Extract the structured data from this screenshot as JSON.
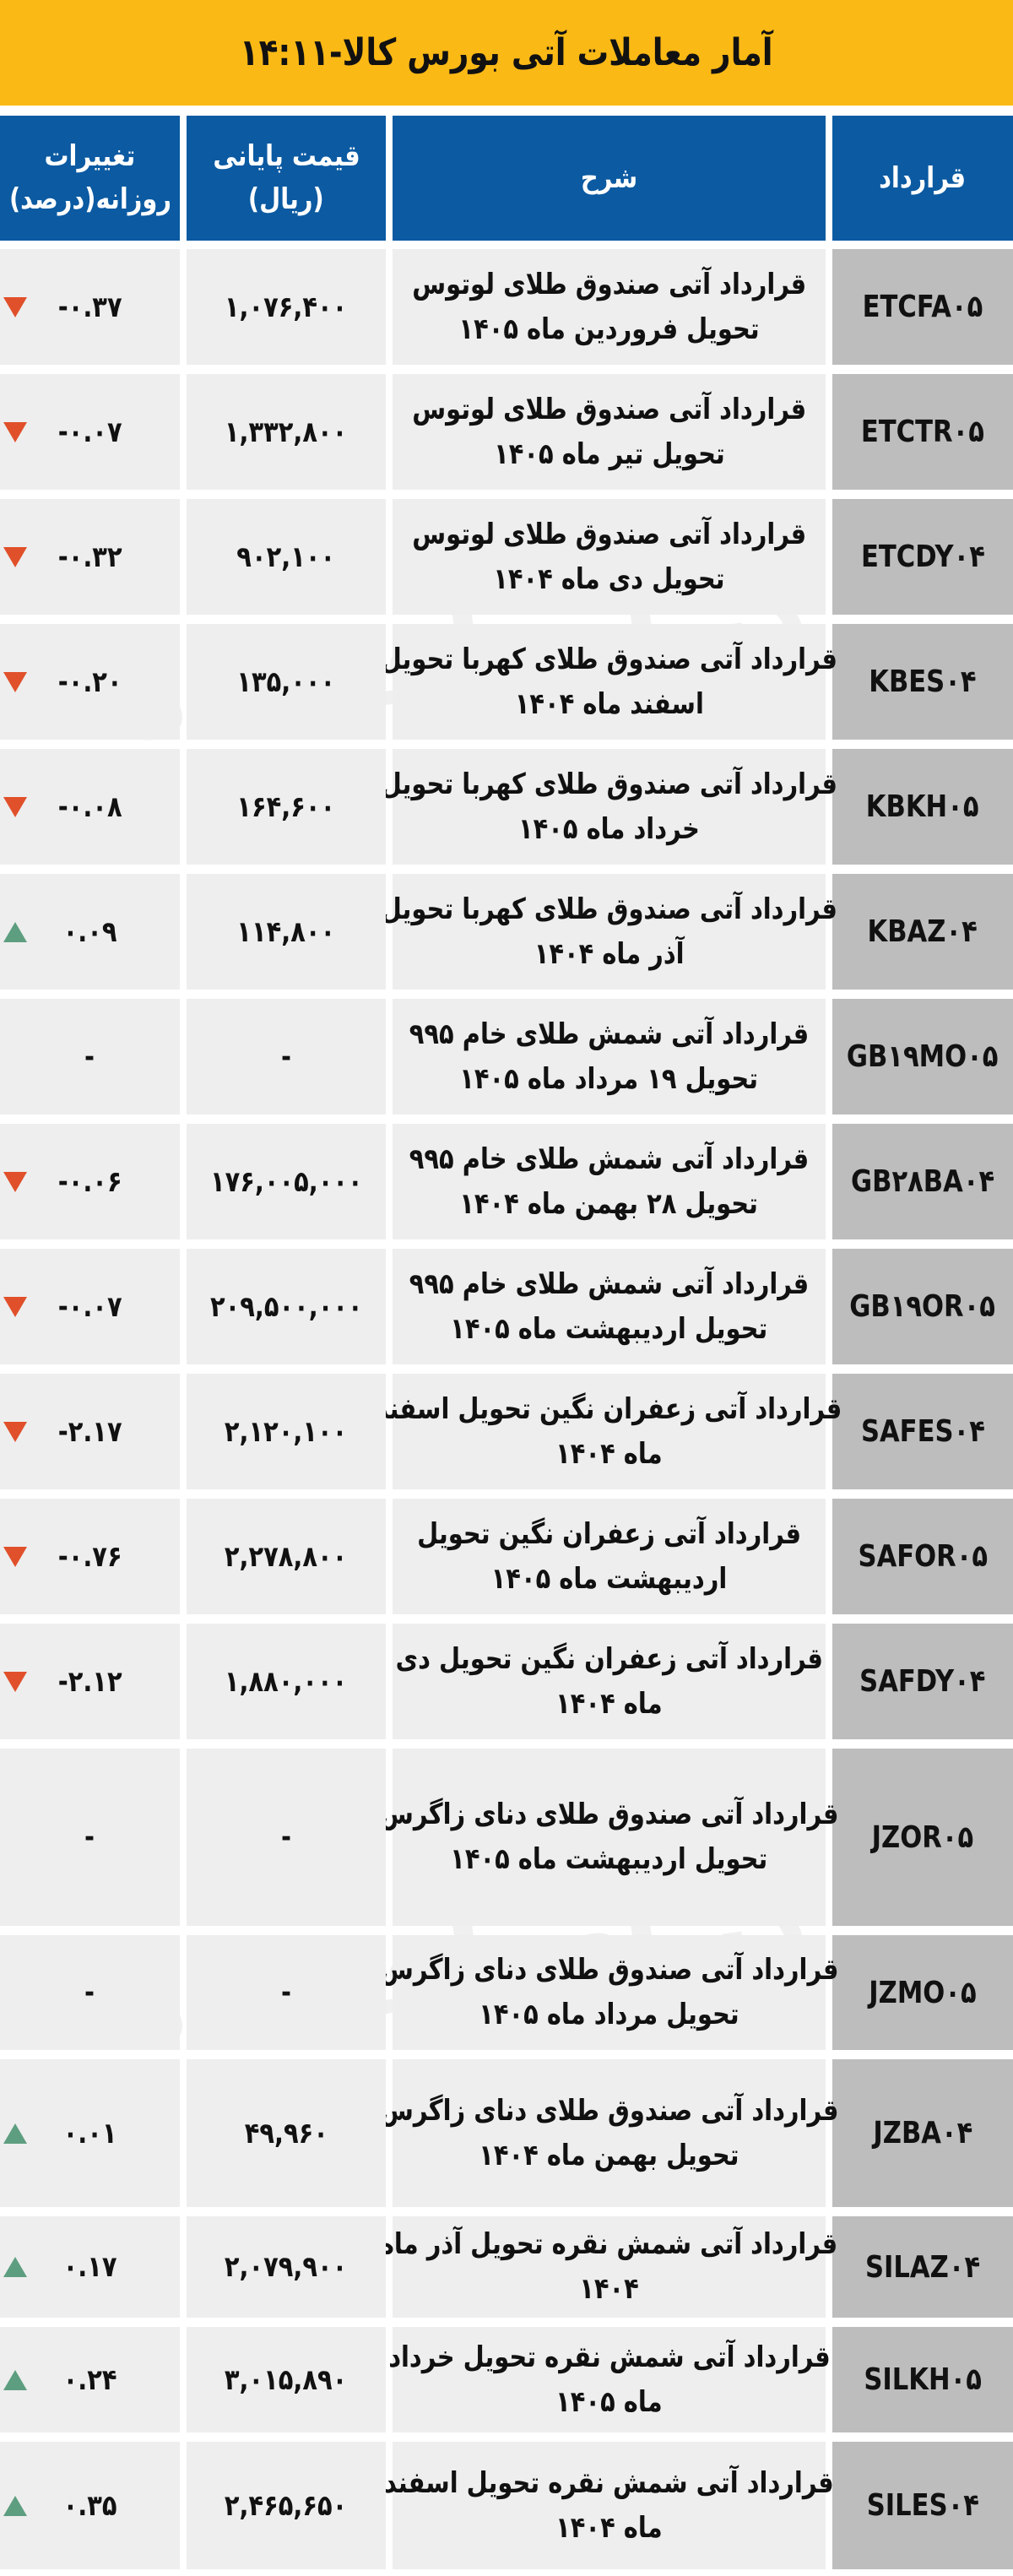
{
  "title": "آمار معاملات آتی بورس کالا-۱۴:۱۱",
  "headers": {
    "contract": "قرارداد",
    "description": "شرح",
    "price": [
      "قیمت پایانی",
      "(ریال)"
    ],
    "change": [
      "تغییرات",
      "روزانه(درصد)"
    ]
  },
  "colors": {
    "title_bg": "#FBB916",
    "header_bg": "#0B5AA2",
    "down": "#E0502A",
    "up": "#5E9E80"
  },
  "watermark": "دنیای اقتصاد",
  "rows": [
    {
      "contract": "ETCFA۰۵",
      "description": [
        "قرارداد آتی صندوق طلای لوتوس",
        "تحویل فروردین ماه ۱۴۰۵"
      ],
      "price": "۱,۰۷۶,۴۰۰",
      "change": "-۰.۳۷",
      "direction": "down"
    },
    {
      "contract": "ETCTR۰۵",
      "description": [
        "قرارداد آتی صندوق طلای لوتوس",
        "تحویل تیر ماه ۱۴۰۵"
      ],
      "price": "۱,۳۳۲,۸۰۰",
      "change": "-۰.۰۷",
      "direction": "down"
    },
    {
      "contract": "ETCDY۰۴",
      "description": [
        "قرارداد آتی صندوق طلای لوتوس",
        "تحویل دی ماه ۱۴۰۴"
      ],
      "price": "۹۰۲,۱۰۰",
      "change": "-۰.۳۲",
      "direction": "down"
    },
    {
      "contract": "KBES۰۴",
      "description": [
        "قرارداد آتی صندوق طلای کهربا تحویل",
        "اسفند ماه ۱۴۰۴"
      ],
      "price": "۱۳۵,۰۰۰",
      "change": "-۰.۲۰",
      "direction": "down"
    },
    {
      "contract": "KBKH۰۵",
      "description": [
        "قرارداد آتی صندوق طلای کهربا تحویل",
        "خرداد ماه ۱۴۰۵"
      ],
      "price": "۱۶۴,۶۰۰",
      "change": "-۰.۰۸",
      "direction": "down"
    },
    {
      "contract": "KBAZ۰۴",
      "description": [
        "قرارداد آتی صندوق طلای کهربا تحویل",
        "آذر ماه ۱۴۰۴"
      ],
      "price": "۱۱۴,۸۰۰",
      "change": "۰.۰۹",
      "direction": "up"
    },
    {
      "contract": "GB۱۹MO۰۵",
      "description": [
        "قرارداد آتی شمش طلای خام ۹۹۵",
        "تحویل ۱۹ مرداد ماه ۱۴۰۵"
      ],
      "price": "-",
      "change": "-",
      "direction": "none"
    },
    {
      "contract": "GB۲۸BA۰۴",
      "description": [
        "قرارداد آتی شمش طلای خام ۹۹۵",
        "تحویل ۲۸ بهمن ماه ۱۴۰۴"
      ],
      "price": "۱۷۶,۰۰۵,۰۰۰",
      "change": "-۰.۰۶",
      "direction": "down"
    },
    {
      "contract": "GB۱۹OR۰۵",
      "description": [
        "قرارداد آتی شمش طلای خام ۹۹۵",
        "تحویل اردیبهشت ماه ۱۴۰۵"
      ],
      "price": "۲۰۹,۵۰۰,۰۰۰",
      "change": "-۰.۰۷",
      "direction": "down"
    },
    {
      "contract": "SAFES۰۴",
      "description": [
        "قرارداد آتی زعفران نگین تحویل اسفند",
        "ماه ۱۴۰۴"
      ],
      "price": "۲,۱۲۰,۱۰۰",
      "change": "-۲.۱۷",
      "direction": "down"
    },
    {
      "contract": "SAFOR۰۵",
      "description": [
        "قرارداد آتی زعفران نگین تحویل",
        "اردیبهشت ماه ۱۴۰۵"
      ],
      "price": "۲,۲۷۸,۸۰۰",
      "change": "-۰.۷۶",
      "direction": "down"
    },
    {
      "contract": "SAFDY۰۴",
      "description": [
        "قرارداد آتی زعفران نگین تحویل دی",
        "ماه ۱۴۰۴"
      ],
      "price": "۱,۸۸۰,۰۰۰",
      "change": "-۲.۱۲",
      "direction": "down"
    },
    {
      "contract": "JZOR۰۵",
      "description": [
        "قرارداد آتی صندوق طلای دنای زاگرس",
        "تحویل اردیبهشت ماه ۱۴۰۵"
      ],
      "price": "-",
      "change": "-",
      "direction": "none"
    },
    {
      "contract": "JZMO۰۵",
      "description": [
        "قرارداد آتی صندوق طلای دنای زاگرس",
        "تحویل مرداد ماه ۱۴۰۵"
      ],
      "price": "-",
      "change": "-",
      "direction": "none"
    },
    {
      "contract": "JZBA۰۴",
      "description": [
        "قرارداد آتی صندوق طلای دنای زاگرس",
        "تحویل بهمن ماه ۱۴۰۴"
      ],
      "price": "۴۹,۹۶۰",
      "change": "۰.۰۱",
      "direction": "up"
    },
    {
      "contract": "SILAZ۰۴",
      "description": [
        "قرارداد آتی شمش نقره تحویل آذر ماه",
        "۱۴۰۴"
      ],
      "price": "۲,۰۷۹,۹۰۰",
      "change": "۰.۱۷",
      "direction": "up"
    },
    {
      "contract": "SILKH۰۵",
      "description": [
        "قرارداد آتی شمش نقره تحویل خرداد",
        "ماه ۱۴۰۵"
      ],
      "price": "۳,۰۱۵,۸۹۰",
      "change": "۰.۲۴",
      "direction": "up"
    },
    {
      "contract": "SILES۰۴",
      "description": [
        "قرارداد آتی شمش نقره تحویل اسفند",
        "ماه ۱۴۰۴"
      ],
      "price": "۲,۴۶۵,۶۵۰",
      "change": "۰.۳۵",
      "direction": "up"
    }
  ]
}
